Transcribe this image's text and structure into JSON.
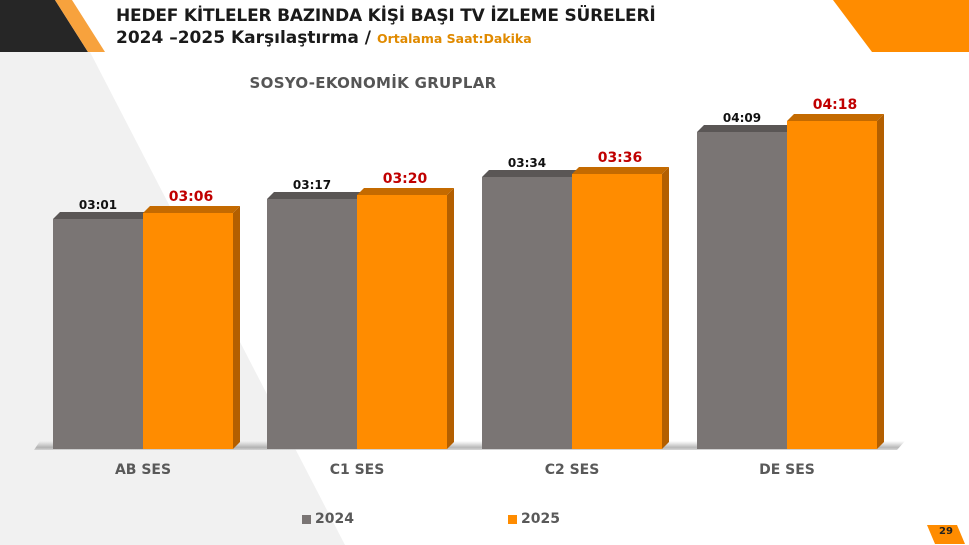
{
  "header": {
    "title_line1": "HEDEF KİTLELER BAZINDA KİŞİ BAŞI TV İZLEME SÜRELERİ",
    "title_line2": "2024 –2025 Karşılaştırma / ",
    "subtitle": "Ortalama Saat:Dakika"
  },
  "colors": {
    "series_2024": "#7a7574",
    "series_2025": "#ff8c00",
    "label_2025": "#c00000",
    "accent": "#ff8c00",
    "dark_corner": "#262626"
  },
  "chart_data": {
    "type": "bar",
    "title": "SOSYO-EKONOMİK GRUPLAR",
    "categories": [
      "AB SES",
      "C1 SES",
      "C2 SES",
      "DE SES"
    ],
    "series": [
      {
        "name": "2024",
        "values": [
          "03:01",
          "03:17",
          "03:34",
          "04:09"
        ],
        "minutes": [
          181,
          197,
          214,
          249
        ]
      },
      {
        "name": "2025",
        "values": [
          "03:06",
          "03:20",
          "03:36",
          "04:18"
        ],
        "minutes": [
          186,
          200,
          216,
          258
        ]
      }
    ],
    "xlabel": "",
    "ylabel": "Ortalama Saat:Dakika",
    "grid": false,
    "legend_position": "bottom",
    "style": "3d-clustered-column"
  },
  "legend": [
    {
      "label": "2024"
    },
    {
      "label": "2025"
    }
  ],
  "footer": {
    "page_number": "29"
  }
}
